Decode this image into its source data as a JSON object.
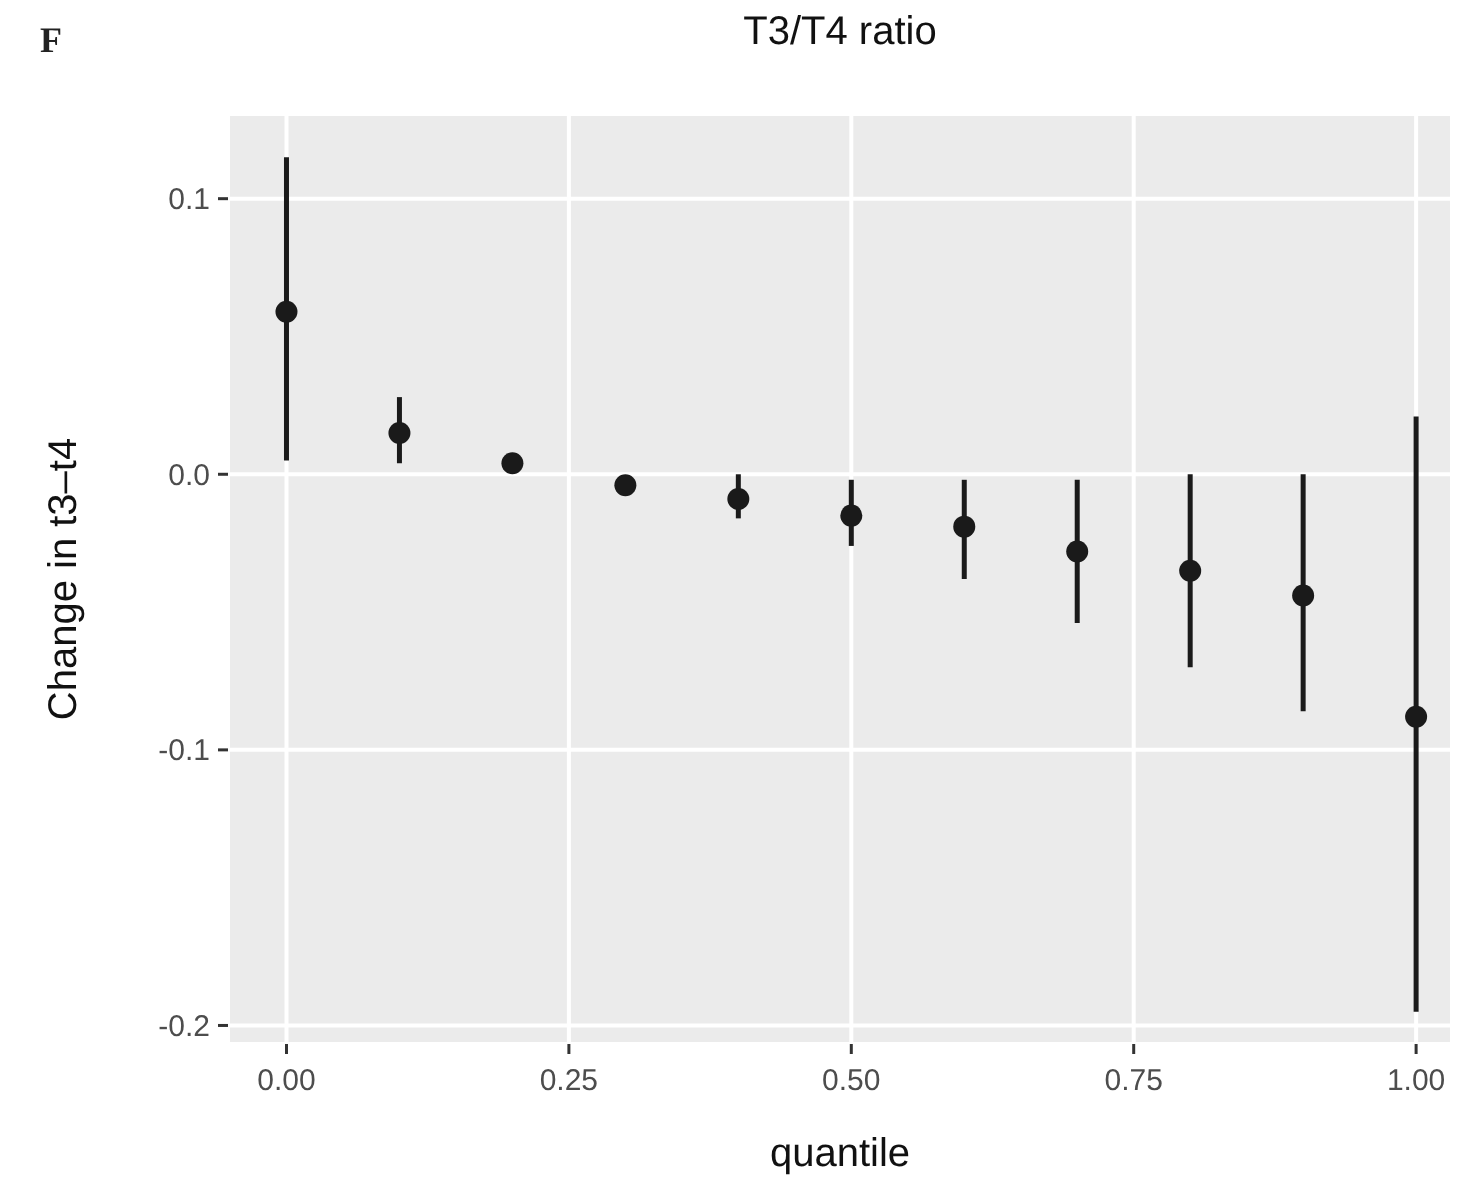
{
  "chart_data": {
    "type": "scatter",
    "title": "T3/T4 ratio",
    "xlabel": "quantile",
    "ylabel": "Change in t3–t4",
    "annotations": [
      "F"
    ],
    "x": [
      0,
      0.1,
      0.2,
      0.3,
      0.4,
      0.5,
      0.6,
      0.7,
      0.8,
      0.9,
      1.0
    ],
    "series": [
      {
        "color": "#1a1a1a",
        "values": [
          0.059,
          0.015,
          0.004,
          -0.004,
          -0.009,
          -0.015,
          -0.019,
          -0.028,
          -0.035,
          -0.044,
          -0.088
        ],
        "errors": [
          [
            0.005,
            0.115
          ],
          [
            0.004,
            0.028
          ],
          null,
          null,
          [
            -0.016,
            0
          ],
          [
            -0.026,
            -0.002
          ],
          [
            -0.038,
            -0.002
          ],
          [
            -0.054,
            -0.002
          ],
          [
            -0.07,
            0.0
          ],
          [
            -0.086,
            0.0
          ],
          [
            -0.195,
            0.021
          ]
        ]
      }
    ],
    "xlim": [
      -0.05,
      1.03
    ],
    "ylim": [
      -0.206,
      0.13
    ],
    "xticks": [
      {
        "value": 0,
        "label": "0.00"
      },
      {
        "value": 0.25,
        "label": "0.25"
      },
      {
        "value": 0.5,
        "label": "0.50"
      },
      {
        "value": 0.75,
        "label": "0.75"
      },
      {
        "value": 1,
        "label": "1.00"
      }
    ],
    "yticks": [
      {
        "value": -0.2,
        "label": "-0.2"
      },
      {
        "value": -0.1,
        "label": "-0.1"
      },
      {
        "value": 0,
        "label": "0.0"
      },
      {
        "value": 0.1,
        "label": "0.1"
      }
    ],
    "grid": true,
    "marker": "circle"
  }
}
